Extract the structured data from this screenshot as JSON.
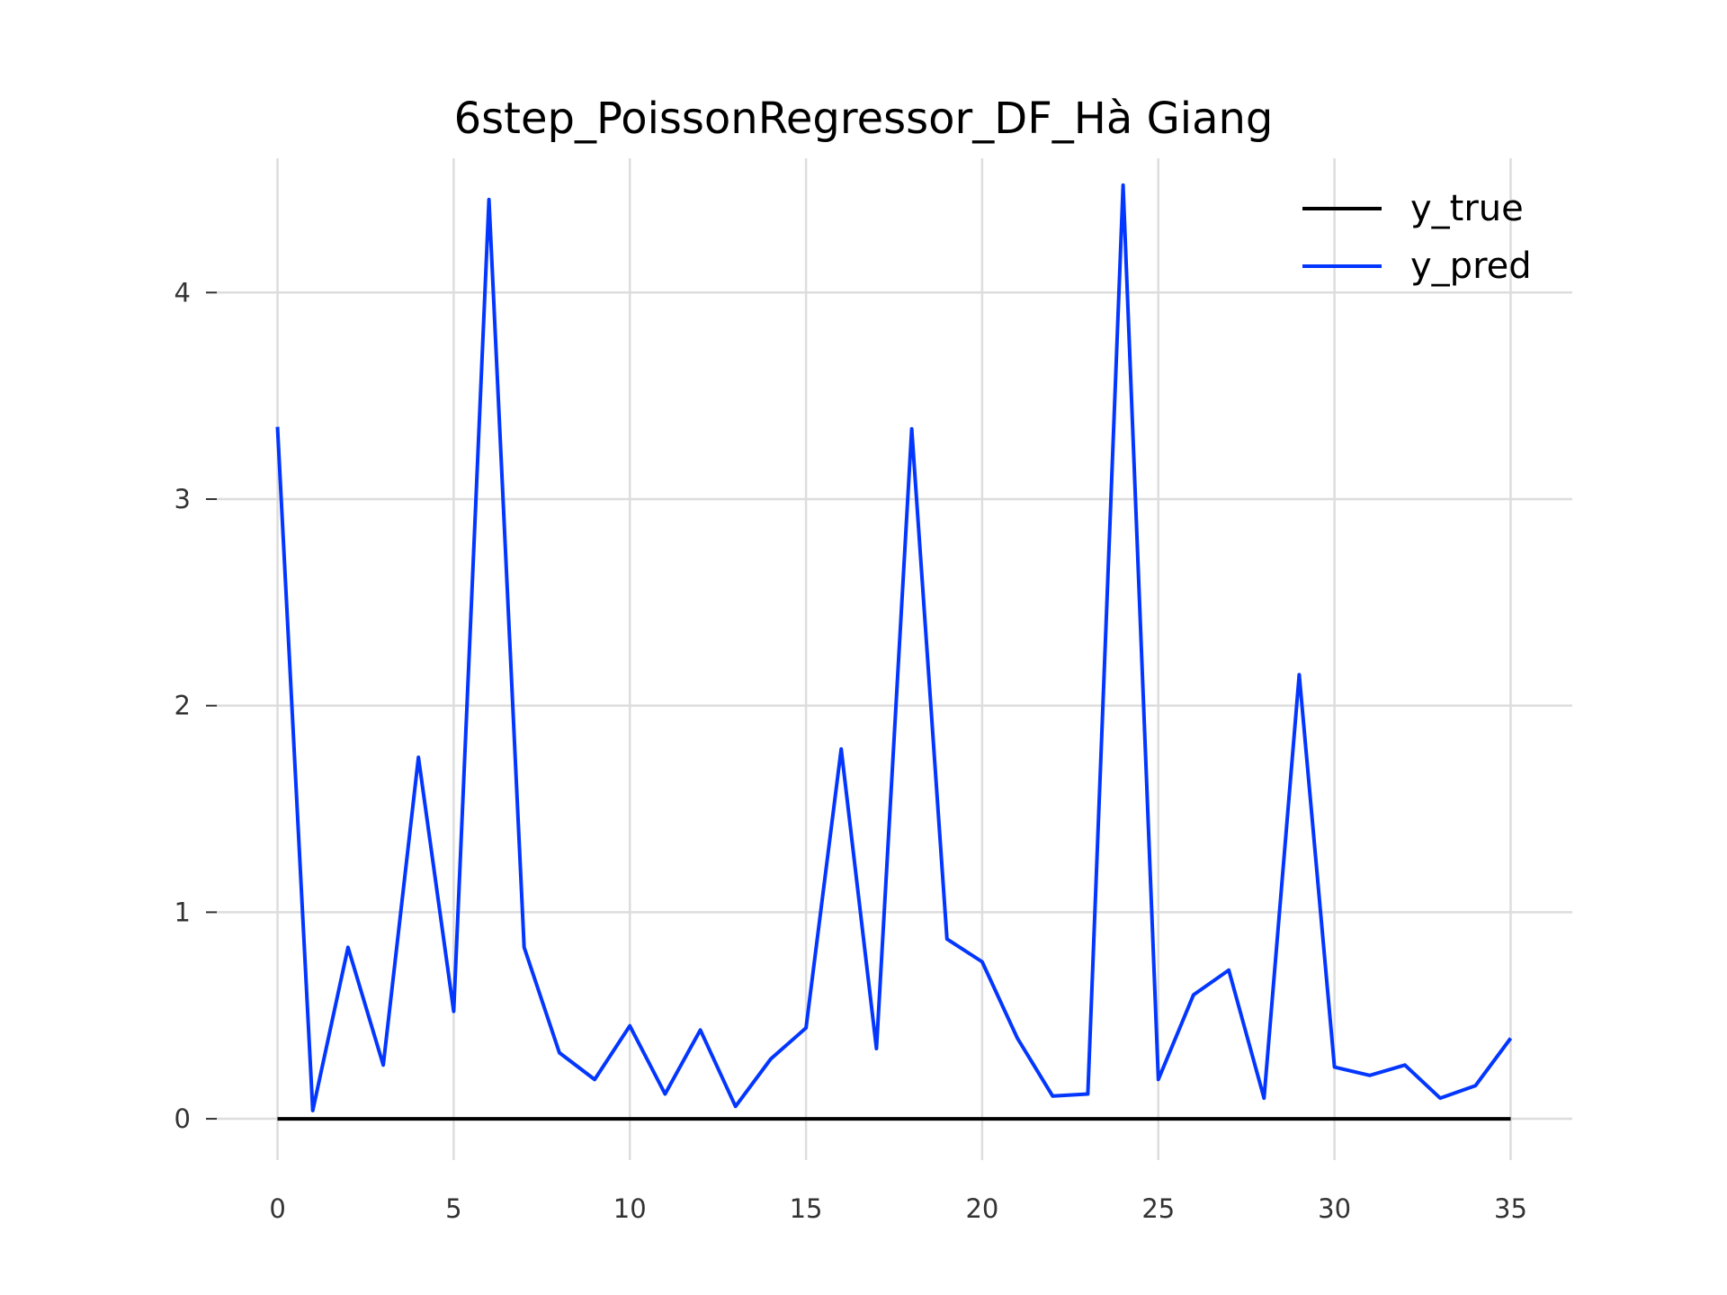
{
  "chart_data": {
    "type": "line",
    "title": "6step_PoissonRegressor_DF_Hà Giang",
    "xlabel": "",
    "ylabel": "",
    "xlim": [
      -1.75,
      36.75
    ],
    "ylim": [
      -0.2,
      4.65
    ],
    "x_ticks": [
      0,
      5,
      10,
      15,
      20,
      25,
      30,
      35
    ],
    "y_ticks": [
      0,
      1,
      2,
      3,
      4
    ],
    "x_tick_labels": [
      "0",
      "5",
      "10",
      "15",
      "20",
      "25",
      "30",
      "35"
    ],
    "y_tick_labels": [
      "0",
      "1",
      "2",
      "3",
      "4"
    ],
    "grid": true,
    "legend_position": "top-right",
    "x": [
      0,
      1,
      2,
      3,
      4,
      5,
      6,
      7,
      8,
      9,
      10,
      11,
      12,
      13,
      14,
      15,
      16,
      17,
      18,
      19,
      20,
      21,
      22,
      23,
      24,
      25,
      26,
      27,
      28,
      29,
      30,
      31,
      32,
      33,
      34,
      35
    ],
    "series": [
      {
        "name": "y_true",
        "color": "#000000",
        "values": [
          0,
          0,
          0,
          0,
          0,
          0,
          0,
          0,
          0,
          0,
          0,
          0,
          0,
          0,
          0,
          0,
          0,
          0,
          0,
          0,
          0,
          0,
          0,
          0,
          0,
          0,
          0,
          0,
          0,
          0,
          0,
          0,
          0,
          0,
          0,
          0
        ]
      },
      {
        "name": "y_pred",
        "color": "#0336ff",
        "values": [
          3.35,
          0.04,
          0.83,
          0.26,
          1.75,
          0.52,
          4.45,
          0.83,
          0.32,
          0.19,
          0.45,
          0.12,
          0.43,
          0.06,
          0.29,
          0.44,
          1.79,
          0.34,
          3.34,
          0.87,
          0.76,
          0.39,
          0.11,
          0.12,
          4.52,
          0.19,
          0.6,
          0.72,
          0.1,
          2.15,
          0.25,
          0.21,
          0.26,
          0.1,
          0.16,
          0.39
        ]
      }
    ]
  }
}
